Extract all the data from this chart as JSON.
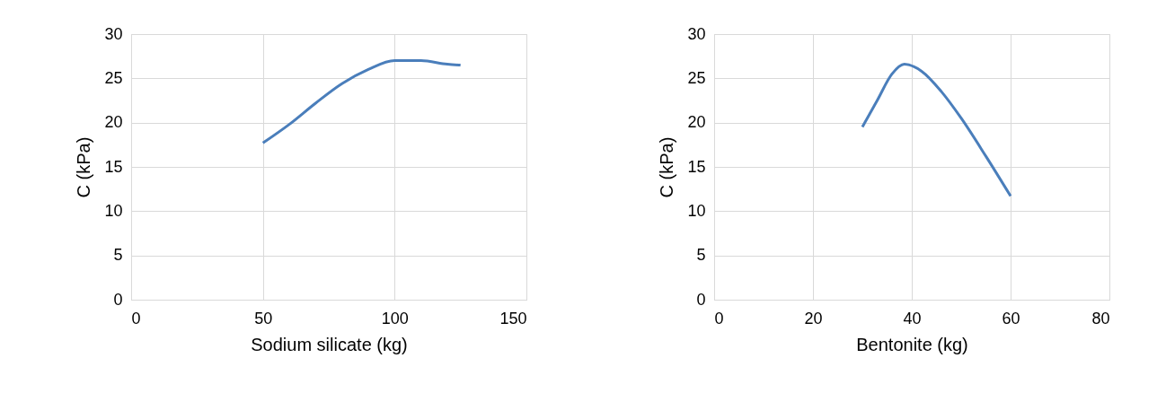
{
  "chart_data": [
    {
      "type": "line",
      "xlabel": "Sodium silicate (kg)",
      "ylabel": "C (kPa)",
      "xlim": [
        0,
        150
      ],
      "xticks": [
        0,
        50,
        100,
        150
      ],
      "ylim": [
        0,
        30
      ],
      "yticks": [
        0,
        5,
        10,
        15,
        20,
        25,
        30
      ],
      "grid": true,
      "x": [
        50,
        60,
        70,
        80,
        90,
        100,
        110,
        120,
        125
      ],
      "series": [
        {
          "color": "#4a7ebb",
          "values": [
            17.7,
            19.8,
            22.2,
            24.4,
            26.0,
            27.0,
            27.0,
            26.6,
            26.5
          ]
        }
      ]
    },
    {
      "type": "line",
      "xlabel": "Bentonite (kg)",
      "ylabel": "C (kPa)",
      "xlim": [
        0,
        80
      ],
      "xticks": [
        0,
        20,
        40,
        60,
        80
      ],
      "ylim": [
        0,
        30
      ],
      "yticks": [
        0,
        5,
        10,
        15,
        20,
        25,
        30
      ],
      "grid": true,
      "x": [
        30,
        33,
        36,
        38.5,
        42,
        46,
        50,
        55,
        60
      ],
      "series": [
        {
          "color": "#4a7ebb",
          "values": [
            19.5,
            22.5,
            25.5,
            26.6,
            25.8,
            23.5,
            20.5,
            16.2,
            11.7
          ]
        }
      ]
    }
  ]
}
